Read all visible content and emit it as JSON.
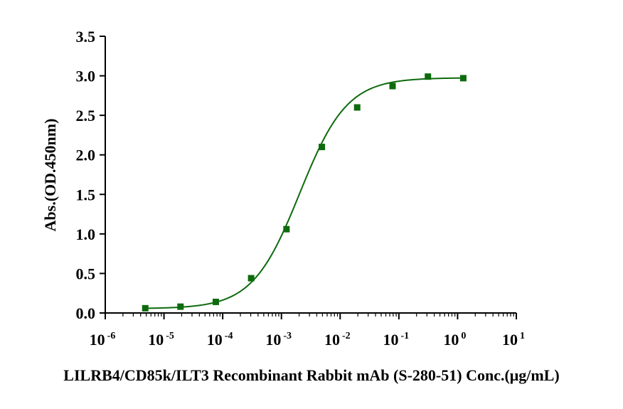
{
  "chart_data": {
    "type": "scatter",
    "xlabel": "LILRB4/CD85k/ILT3 Recombinant Rabbit mAb (S-280-51) Conc.(μg/mL)",
    "ylabel": "Abs.(OD.450nm)",
    "x_scale": "log",
    "xlim": [
      1e-06,
      10
    ],
    "ylim": [
      0,
      3.5
    ],
    "x_ticks": [
      {
        "base": "10",
        "exp": "-6"
      },
      {
        "base": "10",
        "exp": "-5"
      },
      {
        "base": "10",
        "exp": "-4"
      },
      {
        "base": "10",
        "exp": "-3"
      },
      {
        "base": "10",
        "exp": "-2"
      },
      {
        "base": "10",
        "exp": "-1"
      },
      {
        "base": "10",
        "exp": "0"
      },
      {
        "base": "10",
        "exp": "1"
      }
    ],
    "y_ticks": [
      "0.0",
      "0.5",
      "1.0",
      "1.5",
      "2.0",
      "2.5",
      "3.0",
      "3.5"
    ],
    "series": [
      {
        "color": "#0d6b0d",
        "marker": "square",
        "fit": "4PL",
        "points": [
          {
            "x": 4.8e-06,
            "y": 0.06
          },
          {
            "x": 1.91e-05,
            "y": 0.08
          },
          {
            "x": 7.63e-05,
            "y": 0.14
          },
          {
            "x": 0.000305,
            "y": 0.44
          },
          {
            "x": 0.00122,
            "y": 1.06
          },
          {
            "x": 0.00488,
            "y": 2.1
          },
          {
            "x": 0.0195,
            "y": 2.6
          },
          {
            "x": 0.0781,
            "y": 2.87
          },
          {
            "x": 0.3125,
            "y": 2.99
          },
          {
            "x": 1.25,
            "y": 2.97
          }
        ]
      }
    ]
  }
}
